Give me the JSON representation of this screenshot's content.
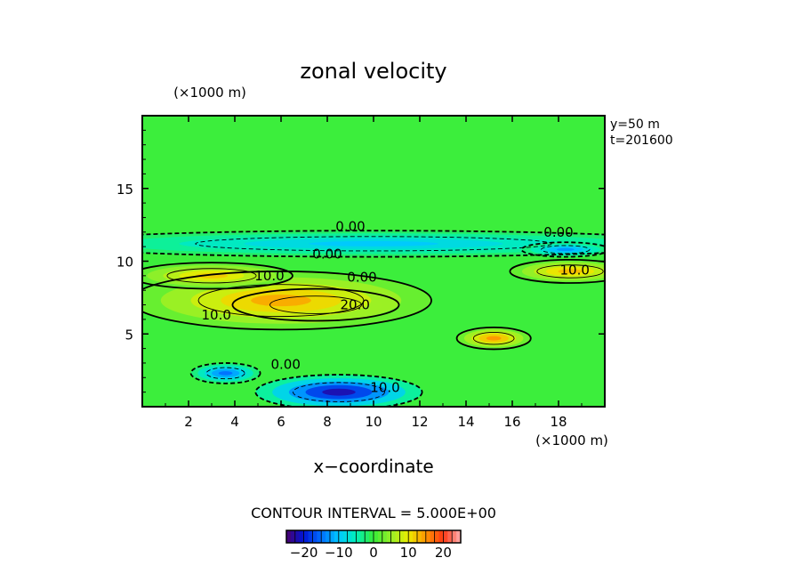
{
  "chart_data": {
    "type": "heatmap",
    "title": "zonal velocity",
    "xlabel": "x−coordinate",
    "x_unit": "(×1000 m)",
    "y_unit": "(×1000 m)",
    "xlim": [
      0,
      20
    ],
    "ylim": [
      0,
      20
    ],
    "x_ticks": [
      "2",
      "4",
      "6",
      "8",
      "10",
      "12",
      "14",
      "16",
      "18"
    ],
    "y_ticks": [
      "5",
      "10",
      "15"
    ],
    "info": [
      "y=50 m",
      "t=201600"
    ],
    "contour_interval_text": "CONTOUR INTERVAL = 5.000E+00",
    "colorbar": {
      "min": -25,
      "max": 25,
      "tick_labels": [
        "−20",
        "−10",
        "0",
        "10",
        "20"
      ],
      "tick_values": [
        -20,
        -10,
        0,
        10,
        20
      ]
    },
    "contour_labels": [
      {
        "text": "0.00",
        "x": 9.0,
        "y": 12.4
      },
      {
        "text": "0.00",
        "x": 8.0,
        "y": 10.5
      },
      {
        "text": "0.00",
        "x": 18.0,
        "y": 12.0
      },
      {
        "text": "0.00",
        "x": 9.5,
        "y": 8.9
      },
      {
        "text": "0.00",
        "x": 6.2,
        "y": 2.9
      },
      {
        "text": "10.0",
        "x": 5.5,
        "y": 9.0
      },
      {
        "text": "10.0",
        "x": 3.2,
        "y": 6.3
      },
      {
        "text": "10.0",
        "x": 18.7,
        "y": 9.4
      },
      {
        "text": "10.0",
        "x": 10.5,
        "y": 1.3
      },
      {
        "text": "20.0",
        "x": 9.2,
        "y": 7.0
      }
    ],
    "field_features": [
      {
        "desc": "strong eastward jet core",
        "x": 7.5,
        "y": 7.0,
        "rx": 3.6,
        "ry": 1.1,
        "value": 24
      },
      {
        "desc": "jet",
        "x": 6.0,
        "y": 7.3,
        "rx": 6.5,
        "ry": 2.0,
        "value": 14
      },
      {
        "desc": "upper jet",
        "x": 3.0,
        "y": 9.0,
        "rx": 3.5,
        "ry": 0.9,
        "value": 12
      },
      {
        "desc": "east jet",
        "x": 18.5,
        "y": 9.3,
        "rx": 2.6,
        "ry": 0.8,
        "value": 13
      },
      {
        "desc": "secondary maximum",
        "x": 15.2,
        "y": 4.7,
        "rx": 1.6,
        "ry": 0.75,
        "value": 15
      },
      {
        "desc": "westward band",
        "x": 10.0,
        "y": 11.2,
        "rx": 14.0,
        "ry": 0.9,
        "value": -10
      },
      {
        "desc": "westward minimum",
        "x": 18.3,
        "y": 10.8,
        "rx": 1.9,
        "ry": 0.5,
        "value": -13
      },
      {
        "desc": "bottom westward core",
        "x": 8.5,
        "y": 1.0,
        "rx": 3.6,
        "ry": 1.2,
        "value": -22
      },
      {
        "desc": "westward patch",
        "x": 3.6,
        "y": 2.3,
        "rx": 1.5,
        "ry": 0.7,
        "value": -15
      }
    ]
  }
}
